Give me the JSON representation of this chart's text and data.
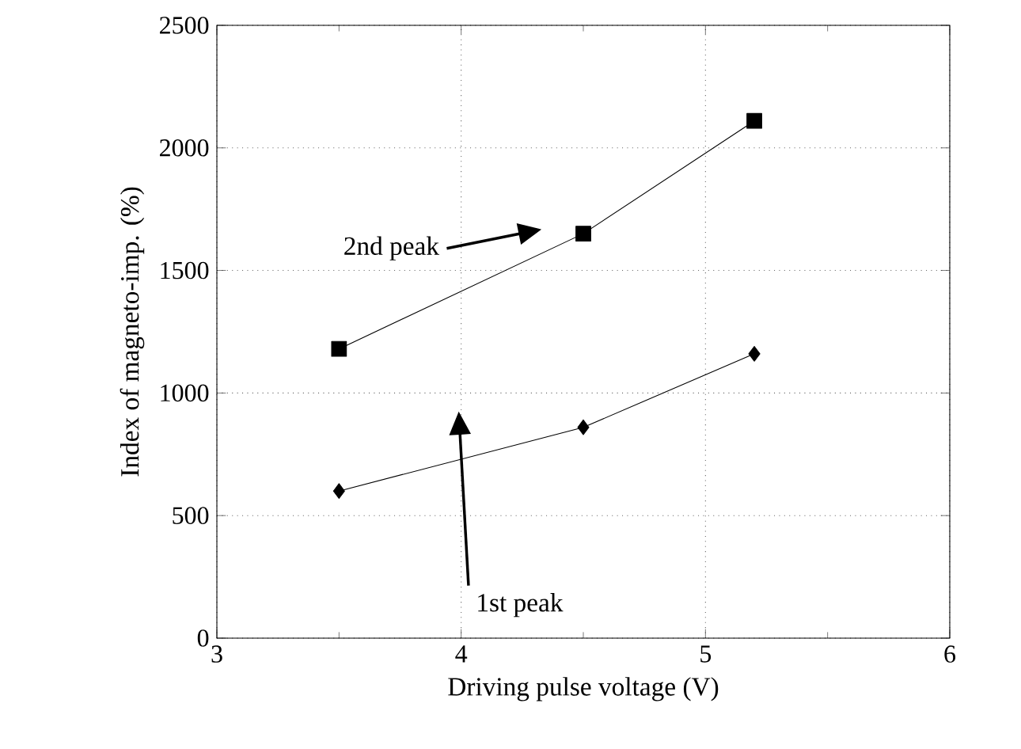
{
  "chart_data": {
    "type": "line",
    "xlabel": "Driving pulse voltage (V)",
    "ylabel": "Index of magneto-imp. (%)",
    "x": [
      3.5,
      4.5,
      5.2
    ],
    "series": [
      {
        "color": "#000000",
        "marker": "square",
        "values": [
          1180,
          1650,
          2110
        ]
      },
      {
        "color": "#000000",
        "marker": "diamond",
        "values": [
          600,
          860,
          1160
        ]
      }
    ],
    "xlim": [
      3,
      6
    ],
    "ylim": [
      0,
      2500
    ],
    "xticks": [
      3,
      4,
      5,
      6
    ],
    "yticks": [
      0,
      500,
      1000,
      1500,
      2000,
      2500
    ],
    "grid": true,
    "line_style": "solid",
    "annotations": [
      "2nd peak",
      "1st peak"
    ]
  }
}
